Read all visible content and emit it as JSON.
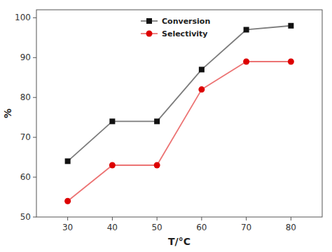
{
  "chart_data": {
    "type": "line",
    "xlabel": "T/°C",
    "ylabel": "%",
    "x": [
      30,
      40,
      50,
      60,
      70,
      80
    ],
    "series": [
      {
        "name": "Conversion",
        "color": "#111111",
        "marker": "square",
        "values": [
          64,
          74,
          74,
          87,
          97,
          98
        ]
      },
      {
        "name": "Selectivity",
        "color": "#dd0000",
        "marker": "circle",
        "values": [
          54,
          63,
          63,
          82,
          89,
          89
        ]
      }
    ],
    "xlim": [
      23,
      87
    ],
    "ylim": [
      50,
      102
    ],
    "xticks": [
      30,
      40,
      50,
      60,
      70,
      80
    ],
    "yticks": [
      50,
      60,
      70,
      80,
      90,
      100
    ],
    "grid": false,
    "legend": "upper center"
  }
}
